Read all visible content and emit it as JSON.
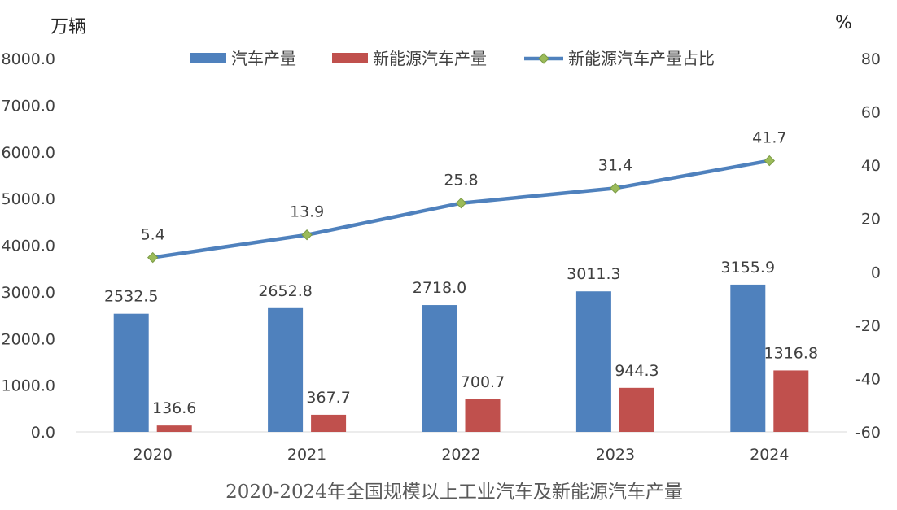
{
  "chart_data": {
    "type": "bar+line",
    "title": "2020-2024年全国规模以上工业汽车及新能源汽车产量",
    "categories": [
      "2020",
      "2021",
      "2022",
      "2023",
      "2024"
    ],
    "y_left": {
      "label": "万辆",
      "range": [
        0,
        8000
      ],
      "ticks": [
        "0.0",
        "1000.0",
        "2000.0",
        "3000.0",
        "4000.0",
        "5000.0",
        "6000.0",
        "7000.0",
        "8000.0"
      ]
    },
    "y_right": {
      "label": "%",
      "range": [
        -60,
        80
      ],
      "ticks": [
        "-60",
        "-40",
        "-20",
        "0",
        "20",
        "40",
        "60",
        "80"
      ]
    },
    "grid": false,
    "legend_position": "top",
    "series": [
      {
        "name": "汽车产量",
        "type": "bar",
        "axis": "left",
        "color": "#4F81BD",
        "values": [
          2532.5,
          2652.8,
          2718.0,
          3011.3,
          3155.9
        ],
        "labels": [
          "2532.5",
          "2652.8",
          "2718.0",
          "3011.3",
          "3155.9"
        ]
      },
      {
        "name": "新能源汽车产量",
        "type": "bar",
        "axis": "left",
        "color": "#C0504D",
        "values": [
          136.6,
          367.7,
          700.7,
          944.3,
          1316.8
        ],
        "labels": [
          "136.6",
          "367.7",
          "700.7",
          "944.3",
          "1316.8"
        ]
      },
      {
        "name": "新能源汽车产量占比",
        "type": "line",
        "axis": "right",
        "color": "#4F81BD",
        "marker_color": "#9BBB59",
        "values": [
          5.4,
          13.9,
          25.8,
          31.4,
          41.7
        ],
        "labels": [
          "5.4",
          "13.9",
          "25.8",
          "31.4",
          "41.7"
        ]
      }
    ]
  }
}
